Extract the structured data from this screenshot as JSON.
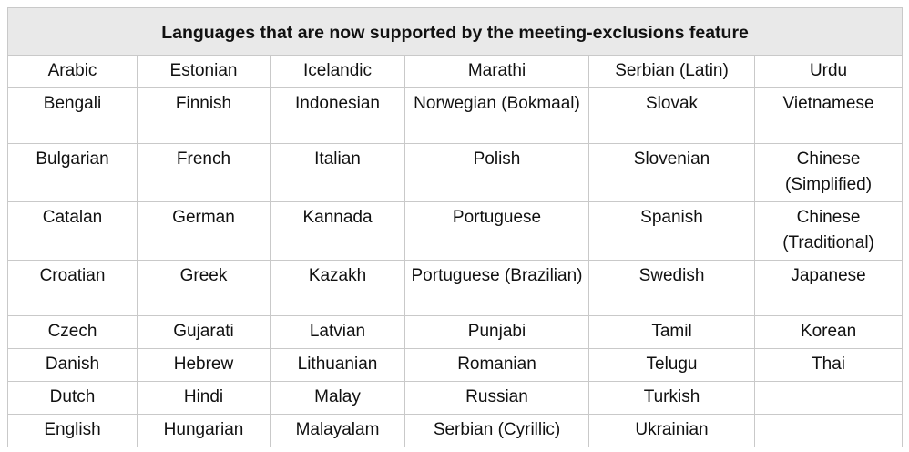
{
  "title": "Languages that are now supported by the meeting-exclusions feature",
  "rows": [
    [
      "Arabic",
      "Estonian",
      "Icelandic",
      "Marathi",
      "Serbian (Latin)",
      "Urdu"
    ],
    [
      "Bengali",
      "Finnish",
      "Indonesian",
      "Norwegian (Bokmaal)",
      "Slovak",
      "Vietnamese"
    ],
    [
      "Bulgarian",
      "French",
      "Italian",
      "Polish",
      "Slovenian",
      "Chinese (Simplified)"
    ],
    [
      "Catalan",
      "German",
      "Kannada",
      "Portuguese",
      "Spanish",
      "Chinese (Traditional)"
    ],
    [
      "Croatian",
      "Greek",
      "Kazakh",
      "Portuguese (Brazilian)",
      "Swedish",
      "Japanese"
    ],
    [
      "Czech",
      "Gujarati",
      "Latvian",
      "Punjabi",
      "Tamil",
      "Korean"
    ],
    [
      "Danish",
      "Hebrew",
      "Lithuanian",
      "Romanian",
      "Telugu",
      "Thai"
    ],
    [
      "Dutch",
      "Hindi",
      "Malay",
      "Russian",
      "Turkish",
      ""
    ],
    [
      "English",
      "Hungarian",
      "Malayalam",
      "Serbian (Cyrillic)",
      "Ukrainian",
      ""
    ]
  ]
}
